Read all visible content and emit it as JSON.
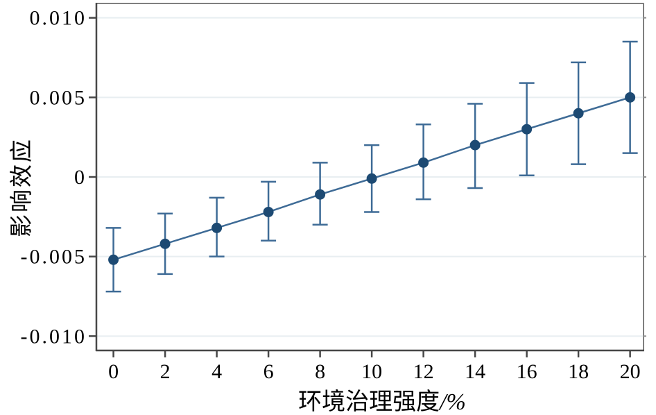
{
  "figure": {
    "background": "#ffffff"
  },
  "chart_data": {
    "type": "line",
    "title": "",
    "xlabel": "环境治理强度",
    "xlabel_unit": "/%",
    "ylabel": "影响效应",
    "x": [
      0,
      2,
      4,
      6,
      8,
      10,
      12,
      14,
      16,
      18,
      20
    ],
    "y": [
      -0.0052,
      -0.0042,
      -0.0032,
      -0.0022,
      -0.0011,
      -0.0001,
      0.0009,
      0.002,
      0.003,
      0.004,
      0.005
    ],
    "ci_low": [
      -0.0072,
      -0.0061,
      -0.005,
      -0.004,
      -0.003,
      -0.0022,
      -0.0014,
      -0.0007,
      0.0001,
      0.0008,
      0.0015
    ],
    "ci_high": [
      -0.0032,
      -0.0023,
      -0.0013,
      -0.0003,
      0.0009,
      0.002,
      0.0033,
      0.0046,
      0.0059,
      0.0072,
      0.0085
    ],
    "x_ticks": [
      {
        "value": 0,
        "label": "0"
      },
      {
        "value": 2,
        "label": "2"
      },
      {
        "value": 4,
        "label": "4"
      },
      {
        "value": 6,
        "label": "6"
      },
      {
        "value": 8,
        "label": "8"
      },
      {
        "value": 10,
        "label": "10"
      },
      {
        "value": 12,
        "label": "12"
      },
      {
        "value": 14,
        "label": "14"
      },
      {
        "value": 16,
        "label": "16"
      },
      {
        "value": 18,
        "label": "18"
      },
      {
        "value": 20,
        "label": "20"
      }
    ],
    "y_ticks": [
      {
        "value": 0.01,
        "label": "0.010"
      },
      {
        "value": 0.005,
        "label": "0.005"
      },
      {
        "value": 0,
        "label": "0"
      },
      {
        "value": -0.005,
        "label": "-0.005"
      },
      {
        "value": -0.01,
        "label": "-0.010"
      }
    ],
    "xlim": [
      -0.66,
      20.52
    ],
    "ylim": [
      -0.0109,
      0.0109
    ],
    "grid": true,
    "legend": null,
    "colors": {
      "marker": "#1d4a73",
      "line": "#3e6b96",
      "error_bar": "#3e6b96",
      "grid": "#e8eef1",
      "border": "#7f7f7f",
      "axis": "#474747",
      "right_tick": "#8f8f8f",
      "text": "#000000"
    }
  }
}
